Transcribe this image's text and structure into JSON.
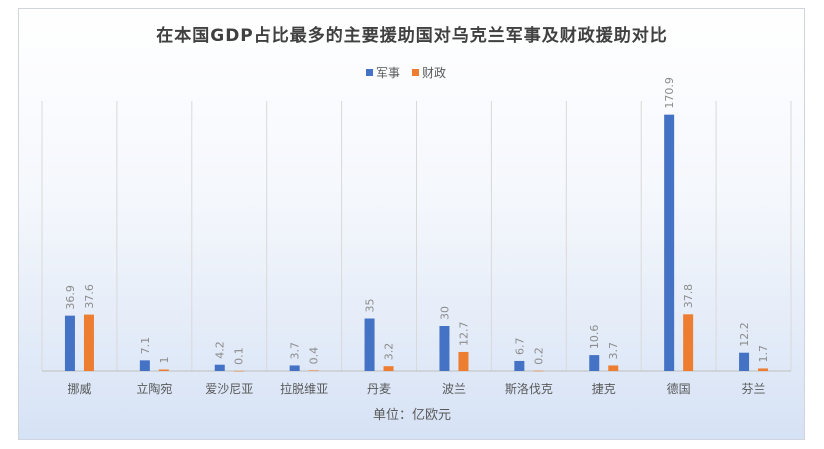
{
  "chart_data": {
    "type": "bar",
    "title": "在本国GDP占比最多的主要援助国对乌克兰军事及财政援助对比",
    "xlabel": "单位：亿欧元",
    "ylabel": "",
    "ylim": [
      0,
      180
    ],
    "grid": "vertical category separators",
    "legend_position": "top",
    "categories": [
      "挪威",
      "立陶宛",
      "爱沙尼亚",
      "拉脱维亚",
      "丹麦",
      "波兰",
      "斯洛伐克",
      "捷克",
      "德国",
      "芬兰"
    ],
    "series": [
      {
        "name": "军事",
        "color": "#4472c4",
        "values": [
          36.9,
          7.1,
          4.2,
          3.7,
          35,
          30,
          6.7,
          10.6,
          170.9,
          12.2
        ],
        "labels": [
          "36.9",
          "7.1",
          "4.2",
          "3.7",
          "35",
          "30",
          "6.7",
          "10.6",
          "170.9",
          "12.2"
        ]
      },
      {
        "name": "财政",
        "color": "#ed7d31",
        "values": [
          37.6,
          1,
          0.1,
          0.4,
          3.2,
          12.7,
          0.2,
          3.7,
          37.8,
          1.7
        ],
        "labels": [
          "37.6",
          "1",
          "0.1",
          "0.4",
          "3.2",
          "12.7",
          "0.2",
          "3.7",
          "37.8",
          "1.7"
        ]
      }
    ]
  }
}
